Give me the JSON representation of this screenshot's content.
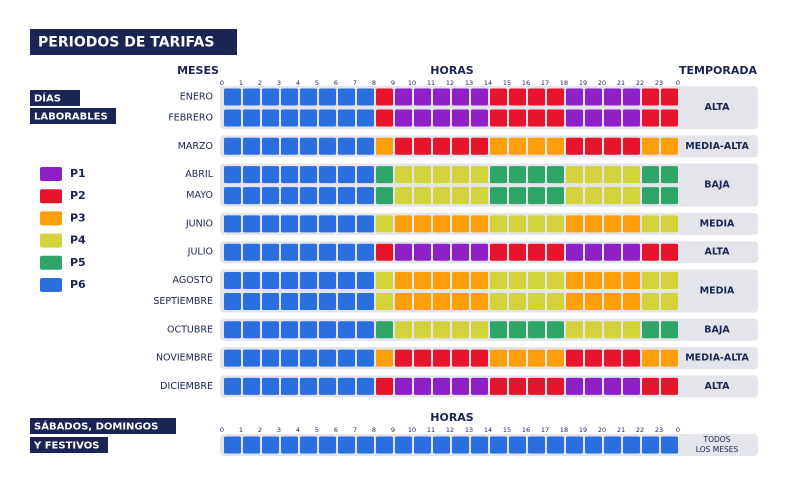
{
  "title": "PERIODOS DE TARIFAS",
  "headers": {
    "months": "MESES",
    "hours": "HORAS",
    "season": "TEMPORADA"
  },
  "hour_labels": [
    "0",
    "1",
    "2",
    "3",
    "4",
    "5",
    "6",
    "7",
    "8",
    "9",
    "10",
    "11",
    "12",
    "13",
    "14",
    "15",
    "16",
    "17",
    "18",
    "19",
    "20",
    "21",
    "22",
    "23",
    "0"
  ],
  "weekdays": {
    "label_lines": [
      "DÍAS",
      "LABORABLES"
    ],
    "groups": [
      {
        "season": "ALTA",
        "rows": [
          {
            "month": "ENERO",
            "periods": [
              "P6",
              "P6",
              "P6",
              "P6",
              "P6",
              "P6",
              "P6",
              "P6",
              "P2",
              "P1",
              "P1",
              "P1",
              "P1",
              "P1",
              "P2",
              "P2",
              "P2",
              "P2",
              "P1",
              "P1",
              "P1",
              "P1",
              "P2",
              "P2"
            ]
          },
          {
            "month": "FEBRERO",
            "periods": [
              "P6",
              "P6",
              "P6",
              "P6",
              "P6",
              "P6",
              "P6",
              "P6",
              "P2",
              "P1",
              "P1",
              "P1",
              "P1",
              "P1",
              "P2",
              "P2",
              "P2",
              "P2",
              "P1",
              "P1",
              "P1",
              "P1",
              "P2",
              "P2"
            ]
          }
        ]
      },
      {
        "season": "MEDIA-ALTA",
        "rows": [
          {
            "month": "MARZO",
            "periods": [
              "P6",
              "P6",
              "P6",
              "P6",
              "P6",
              "P6",
              "P6",
              "P6",
              "P3",
              "P2",
              "P2",
              "P2",
              "P2",
              "P2",
              "P3",
              "P3",
              "P3",
              "P3",
              "P2",
              "P2",
              "P2",
              "P2",
              "P3",
              "P3"
            ]
          }
        ]
      },
      {
        "season": "BAJA",
        "rows": [
          {
            "month": "ABRIL",
            "periods": [
              "P6",
              "P6",
              "P6",
              "P6",
              "P6",
              "P6",
              "P6",
              "P6",
              "P5",
              "P4",
              "P4",
              "P4",
              "P4",
              "P4",
              "P5",
              "P5",
              "P5",
              "P5",
              "P4",
              "P4",
              "P4",
              "P4",
              "P5",
              "P5"
            ]
          },
          {
            "month": "MAYO",
            "periods": [
              "P6",
              "P6",
              "P6",
              "P6",
              "P6",
              "P6",
              "P6",
              "P6",
              "P5",
              "P4",
              "P4",
              "P4",
              "P4",
              "P4",
              "P5",
              "P5",
              "P5",
              "P5",
              "P4",
              "P4",
              "P4",
              "P4",
              "P5",
              "P5"
            ]
          }
        ]
      },
      {
        "season": "MEDIA",
        "rows": [
          {
            "month": "JUNIO",
            "periods": [
              "P6",
              "P6",
              "P6",
              "P6",
              "P6",
              "P6",
              "P6",
              "P6",
              "P4",
              "P3",
              "P3",
              "P3",
              "P3",
              "P3",
              "P4",
              "P4",
              "P4",
              "P4",
              "P3",
              "P3",
              "P3",
              "P3",
              "P4",
              "P4"
            ]
          }
        ]
      },
      {
        "season": "ALTA",
        "rows": [
          {
            "month": "JULIO",
            "periods": [
              "P6",
              "P6",
              "P6",
              "P6",
              "P6",
              "P6",
              "P6",
              "P6",
              "P2",
              "P1",
              "P1",
              "P1",
              "P1",
              "P1",
              "P2",
              "P2",
              "P2",
              "P2",
              "P1",
              "P1",
              "P1",
              "P1",
              "P2",
              "P2"
            ]
          }
        ]
      },
      {
        "season": "MEDIA",
        "rows": [
          {
            "month": "AGOSTO",
            "periods": [
              "P6",
              "P6",
              "P6",
              "P6",
              "P6",
              "P6",
              "P6",
              "P6",
              "P4",
              "P3",
              "P3",
              "P3",
              "P3",
              "P3",
              "P4",
              "P4",
              "P4",
              "P4",
              "P3",
              "P3",
              "P3",
              "P3",
              "P4",
              "P4"
            ]
          },
          {
            "month": "SEPTIEMBRE",
            "periods": [
              "P6",
              "P6",
              "P6",
              "P6",
              "P6",
              "P6",
              "P6",
              "P6",
              "P4",
              "P3",
              "P3",
              "P3",
              "P3",
              "P3",
              "P4",
              "P4",
              "P4",
              "P4",
              "P3",
              "P3",
              "P3",
              "P3",
              "P4",
              "P4"
            ]
          }
        ]
      },
      {
        "season": "BAJA",
        "rows": [
          {
            "month": "OCTUBRE",
            "periods": [
              "P6",
              "P6",
              "P6",
              "P6",
              "P6",
              "P6",
              "P6",
              "P6",
              "P5",
              "P4",
              "P4",
              "P4",
              "P4",
              "P4",
              "P5",
              "P5",
              "P5",
              "P5",
              "P4",
              "P4",
              "P4",
              "P4",
              "P5",
              "P5"
            ]
          }
        ]
      },
      {
        "season": "MEDIA-ALTA",
        "rows": [
          {
            "month": "NOVIEMBRE",
            "periods": [
              "P6",
              "P6",
              "P6",
              "P6",
              "P6",
              "P6",
              "P6",
              "P6",
              "P3",
              "P2",
              "P2",
              "P2",
              "P2",
              "P2",
              "P3",
              "P3",
              "P3",
              "P3",
              "P2",
              "P2",
              "P2",
              "P2",
              "P3",
              "P3"
            ]
          }
        ]
      },
      {
        "season": "ALTA",
        "rows": [
          {
            "month": "DICIEMBRE",
            "periods": [
              "P6",
              "P6",
              "P6",
              "P6",
              "P6",
              "P6",
              "P6",
              "P6",
              "P2",
              "P1",
              "P1",
              "P1",
              "P1",
              "P1",
              "P2",
              "P2",
              "P2",
              "P2",
              "P1",
              "P1",
              "P1",
              "P1",
              "P2",
              "P2"
            ]
          }
        ]
      }
    ]
  },
  "weekend": {
    "label_lines": [
      "SÁBADOS, DOMINGOS",
      "Y FESTIVOS"
    ],
    "hours": "HORAS",
    "season_lines": [
      "TODOS",
      "LOS MESES"
    ],
    "periods": [
      "P6",
      "P6",
      "P6",
      "P6",
      "P6",
      "P6",
      "P6",
      "P6",
      "P6",
      "P6",
      "P6",
      "P6",
      "P6",
      "P6",
      "P6",
      "P6",
      "P6",
      "P6",
      "P6",
      "P6",
      "P6",
      "P6",
      "P6",
      "P6"
    ]
  },
  "legend": [
    {
      "label": "P1",
      "color": "#8f1fc6"
    },
    {
      "label": "P2",
      "color": "#e8132c"
    },
    {
      "label": "P3",
      "color": "#ff9e0b"
    },
    {
      "label": "P4",
      "color": "#d3d33b"
    },
    {
      "label": "P5",
      "color": "#2ea66a"
    },
    {
      "label": "P6",
      "color": "#2b6ee0"
    }
  ]
}
